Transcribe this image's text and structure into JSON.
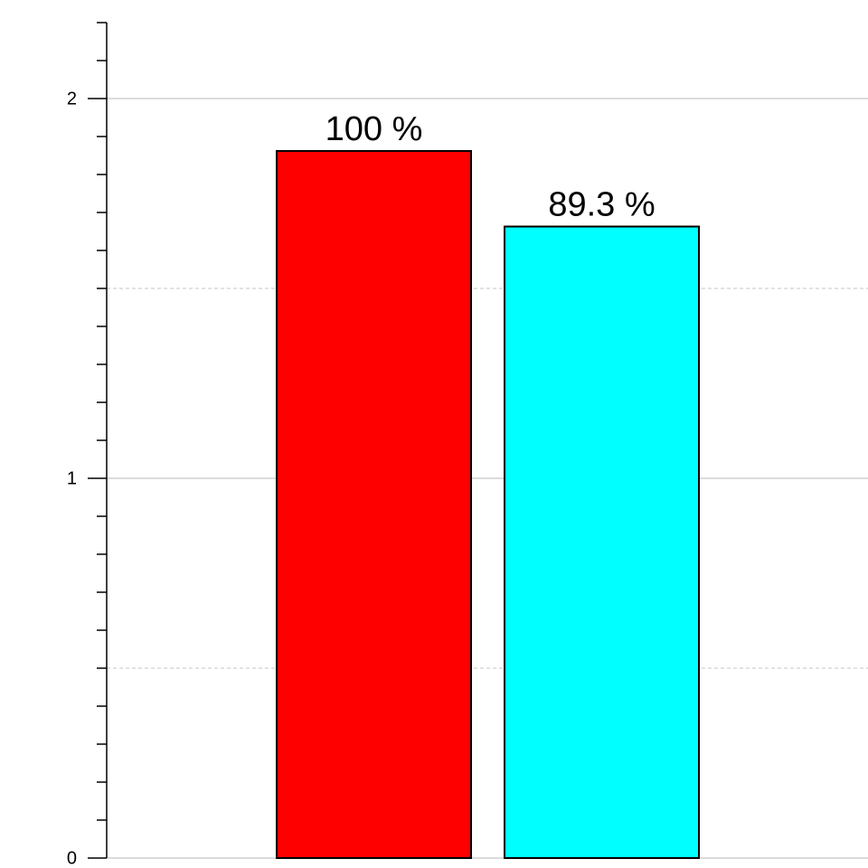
{
  "chart_data": {
    "type": "bar",
    "categories": [
      null,
      null
    ],
    "values": [
      1.862,
      1.663
    ],
    "colors": [
      "#ff0000",
      "#00ffff"
    ],
    "relative_labels": [
      "100 %",
      "89.3 %"
    ],
    "ylim": [
      0,
      2.2
    ],
    "yticks": [
      0,
      1,
      2
    ],
    "yminorticks": [
      0.1,
      0.2,
      0.3,
      0.4,
      0.5,
      0.6,
      0.7,
      0.8,
      0.9,
      1.1,
      1.2,
      1.3,
      1.4,
      1.5,
      1.6,
      1.7,
      1.8,
      1.9,
      2.1,
      2.2
    ],
    "dashed_grid": [
      0.5,
      1.5
    ],
    "grid": true
  }
}
